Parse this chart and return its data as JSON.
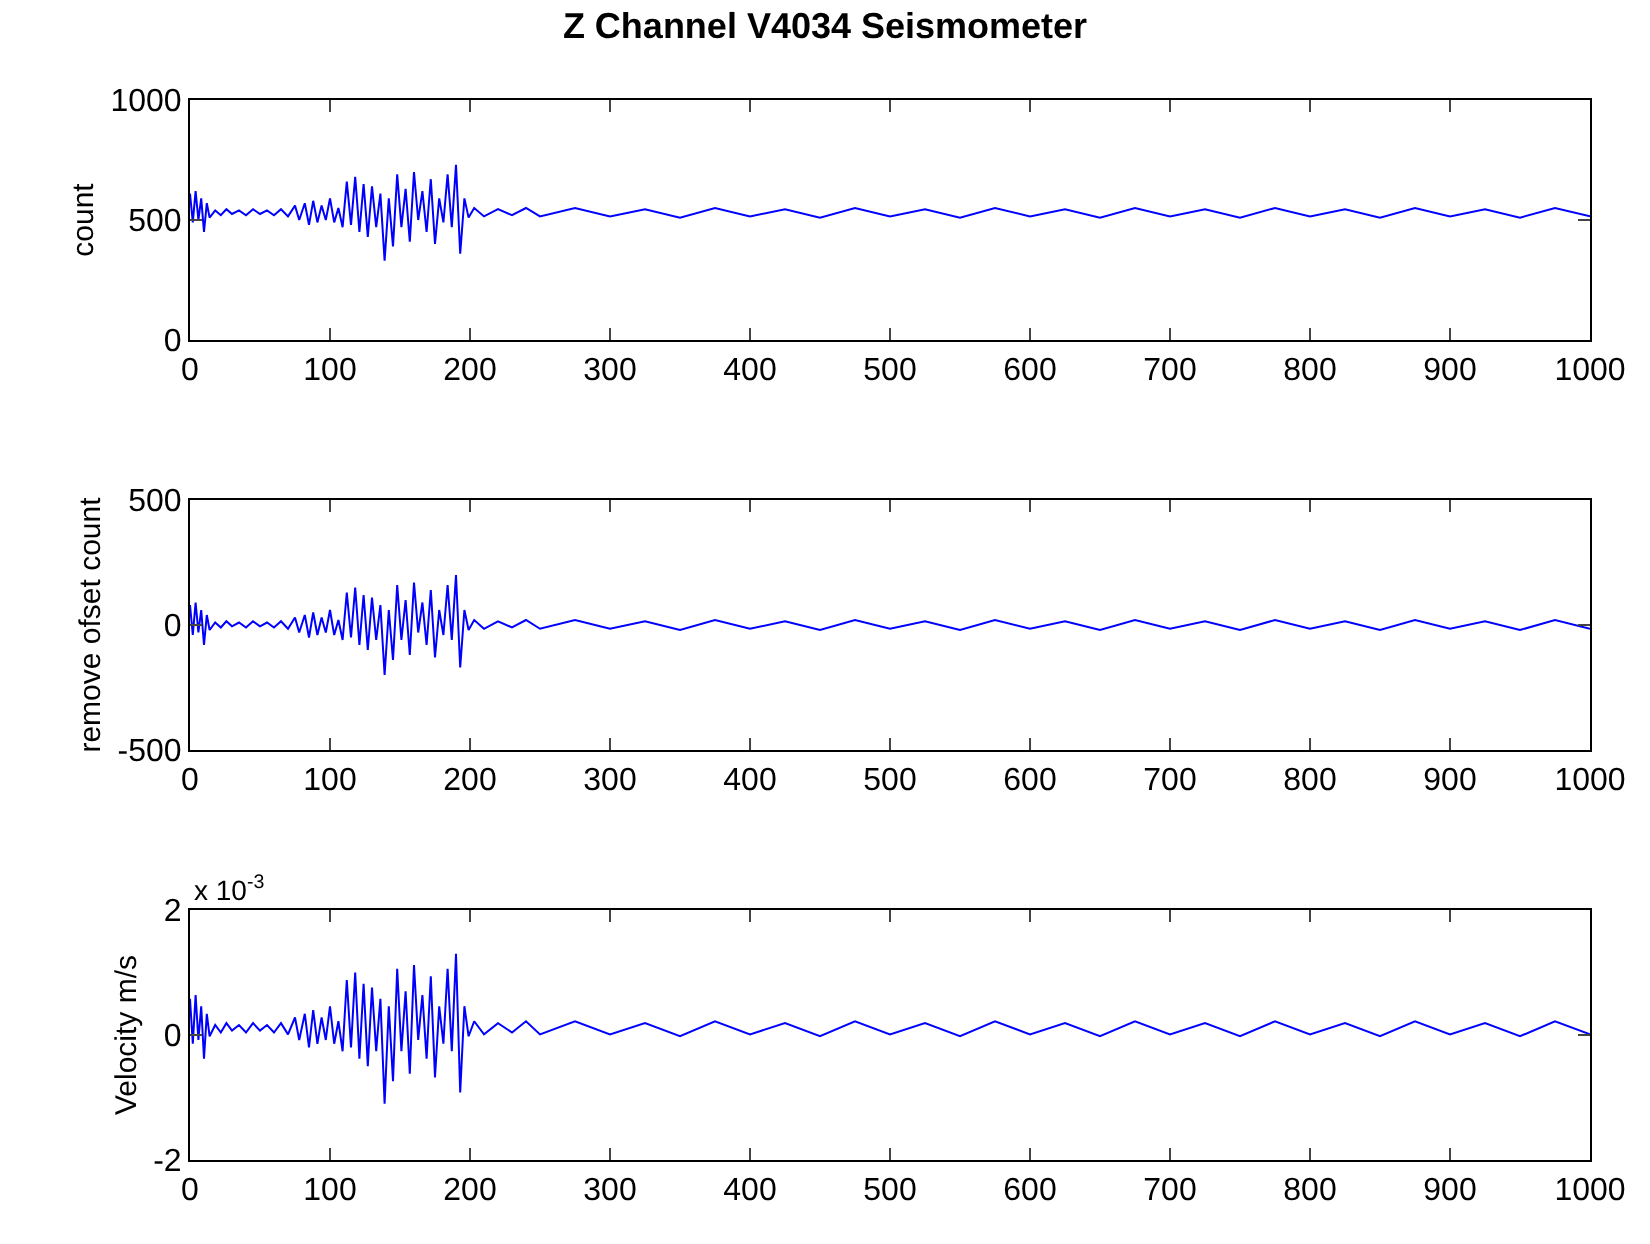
{
  "chart_data": [
    {
      "type": "line",
      "title": "Z Channel V4034 Seismometer",
      "ylabel": "count",
      "xlim": [
        0,
        1000
      ],
      "xticks": [
        0,
        100,
        200,
        300,
        400,
        500,
        600,
        700,
        800,
        900,
        1000
      ],
      "ylim": [
        0,
        1000
      ],
      "yticks": [
        0,
        500,
        1000
      ],
      "grid": false,
      "series": [
        {
          "color": "#0000ff",
          "x": [
            0,
            2,
            4,
            6,
            8,
            10,
            12,
            14,
            18,
            22,
            26,
            30,
            35,
            40,
            45,
            50,
            55,
            60,
            65,
            70,
            75,
            78,
            82,
            85,
            88,
            91,
            94,
            97,
            100,
            103,
            106,
            109,
            112,
            115,
            118,
            121,
            124,
            127,
            130,
            133,
            136,
            139,
            142,
            145,
            148,
            151,
            154,
            157,
            160,
            163,
            166,
            169,
            172,
            175,
            178,
            181,
            184,
            187,
            190,
            193,
            196,
            199,
            203,
            210,
            220,
            230,
            240,
            250,
            275,
            300,
            325,
            350,
            375,
            400,
            425,
            450,
            475,
            500,
            525,
            550,
            575,
            600,
            625,
            650,
            675,
            700,
            725,
            750,
            775,
            800,
            825,
            850,
            875,
            900,
            925,
            950,
            975,
            1000
          ],
          "values": [
            610,
            490,
            620,
            500,
            590,
            450,
            570,
            510,
            540,
            520,
            545,
            525,
            540,
            520,
            545,
            525,
            540,
            520,
            545,
            515,
            560,
            500,
            570,
            480,
            580,
            490,
            560,
            500,
            590,
            490,
            550,
            470,
            660,
            480,
            680,
            450,
            650,
            430,
            640,
            470,
            610,
            330,
            590,
            390,
            690,
            470,
            630,
            410,
            700,
            500,
            620,
            450,
            670,
            400,
            590,
            490,
            690,
            470,
            730,
            360,
            590,
            510,
            550,
            515,
            545,
            520,
            550,
            515,
            550,
            515,
            545,
            510,
            550,
            515,
            545,
            510,
            550,
            515,
            545,
            510,
            550,
            515,
            545,
            510,
            550,
            515,
            545,
            510,
            550,
            515,
            545,
            510,
            550,
            515,
            545,
            510,
            550,
            515
          ]
        }
      ]
    },
    {
      "type": "line",
      "ylabel": "remove ofset count",
      "xlim": [
        0,
        1000
      ],
      "xticks": [
        0,
        100,
        200,
        300,
        400,
        500,
        600,
        700,
        800,
        900,
        1000
      ],
      "ylim": [
        -500,
        500
      ],
      "yticks": [
        -500,
        0,
        500
      ],
      "grid": false,
      "series": [
        {
          "color": "#0000ff",
          "x": [
            0,
            2,
            4,
            6,
            8,
            10,
            12,
            14,
            18,
            22,
            26,
            30,
            35,
            40,
            45,
            50,
            55,
            60,
            65,
            70,
            75,
            78,
            82,
            85,
            88,
            91,
            94,
            97,
            100,
            103,
            106,
            109,
            112,
            115,
            118,
            121,
            124,
            127,
            130,
            133,
            136,
            139,
            142,
            145,
            148,
            151,
            154,
            157,
            160,
            163,
            166,
            169,
            172,
            175,
            178,
            181,
            184,
            187,
            190,
            193,
            196,
            199,
            203,
            210,
            220,
            230,
            240,
            250,
            275,
            300,
            325,
            350,
            375,
            400,
            425,
            450,
            475,
            500,
            525,
            550,
            575,
            600,
            625,
            650,
            675,
            700,
            725,
            750,
            775,
            800,
            825,
            850,
            875,
            900,
            925,
            950,
            975,
            1000
          ],
          "values": [
            80,
            -40,
            90,
            -30,
            60,
            -80,
            40,
            -20,
            10,
            -10,
            15,
            -5,
            10,
            -10,
            15,
            -5,
            10,
            -10,
            15,
            -15,
            30,
            -30,
            40,
            -50,
            50,
            -40,
            30,
            -30,
            60,
            -40,
            20,
            -60,
            130,
            -50,
            150,
            -80,
            120,
            -100,
            110,
            -60,
            80,
            -200,
            60,
            -140,
            160,
            -60,
            100,
            -120,
            170,
            -30,
            90,
            -80,
            140,
            -130,
            60,
            -40,
            160,
            -60,
            200,
            -170,
            60,
            -20,
            20,
            -15,
            15,
            -10,
            20,
            -15,
            20,
            -15,
            15,
            -20,
            20,
            -15,
            15,
            -20,
            20,
            -15,
            15,
            -20,
            20,
            -15,
            15,
            -20,
            20,
            -15,
            15,
            -20,
            20,
            -15,
            15,
            -20,
            20,
            -15,
            15,
            -20,
            20,
            -15
          ]
        }
      ]
    },
    {
      "type": "line",
      "ylabel": "Velocity m/s",
      "annotations": [
        "x 10$^{-3}$"
      ],
      "xlim": [
        0,
        1000
      ],
      "xticks": [
        0,
        100,
        200,
        300,
        400,
        500,
        600,
        700,
        800,
        900,
        1000
      ],
      "ylim": [
        -2,
        2
      ],
      "yticks": [
        -2,
        0,
        2
      ],
      "grid": false,
      "series": [
        {
          "color": "#0000ff",
          "x": [
            0,
            2,
            4,
            6,
            8,
            10,
            12,
            14,
            18,
            22,
            26,
            30,
            35,
            40,
            45,
            50,
            55,
            60,
            65,
            70,
            75,
            78,
            82,
            85,
            88,
            91,
            94,
            97,
            100,
            103,
            106,
            109,
            112,
            115,
            118,
            121,
            124,
            127,
            130,
            133,
            136,
            139,
            142,
            145,
            148,
            151,
            154,
            157,
            160,
            163,
            166,
            169,
            172,
            175,
            178,
            181,
            184,
            187,
            190,
            193,
            196,
            199,
            203,
            210,
            220,
            230,
            240,
            250,
            275,
            300,
            325,
            350,
            375,
            400,
            425,
            450,
            475,
            500,
            525,
            550,
            575,
            600,
            625,
            650,
            675,
            700,
            725,
            750,
            775,
            800,
            825,
            850,
            875,
            900,
            925,
            950,
            975,
            1000
          ],
          "values": [
            0.58,
            -0.14,
            0.64,
            -0.08,
            0.46,
            -0.38,
            0.34,
            -0.02,
            0.16,
            0.04,
            0.19,
            0.07,
            0.16,
            0.04,
            0.19,
            0.07,
            0.16,
            0.04,
            0.19,
            0.01,
            0.28,
            -0.08,
            0.34,
            -0.2,
            0.4,
            -0.14,
            0.28,
            -0.08,
            0.46,
            -0.14,
            0.22,
            -0.26,
            0.88,
            -0.2,
            1.0,
            -0.38,
            0.82,
            -0.5,
            0.76,
            -0.26,
            0.58,
            -1.1,
            0.46,
            -0.74,
            1.06,
            -0.26,
            0.7,
            -0.62,
            1.12,
            -0.08,
            0.64,
            -0.38,
            0.94,
            -0.68,
            0.46,
            -0.14,
            1.06,
            -0.26,
            1.3,
            -0.92,
            0.46,
            -0.02,
            0.22,
            0.01,
            0.19,
            0.04,
            0.22,
            0.01,
            0.22,
            0.01,
            0.19,
            -0.02,
            0.22,
            0.01,
            0.19,
            -0.02,
            0.22,
            0.01,
            0.19,
            -0.02,
            0.22,
            0.01,
            0.19,
            -0.02,
            0.22,
            0.01,
            0.19,
            -0.02,
            0.22,
            0.01,
            0.19,
            -0.02,
            0.22,
            0.01,
            0.19,
            -0.02,
            0.22,
            0.01
          ]
        }
      ]
    }
  ]
}
